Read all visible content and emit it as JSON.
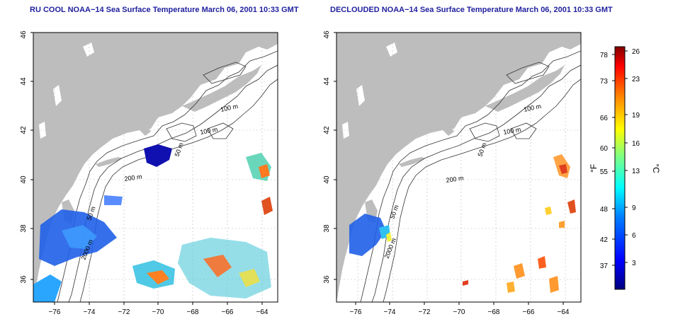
{
  "left_map": {
    "title": "RU COOL NOAA−14 Sea Surface Temperature March 06, 2001 10:33 GMT",
    "lat_ticks": [
      "36",
      "38",
      "40",
      "42",
      "44",
      "46"
    ],
    "lon_ticks": [
      "−76",
      "−74",
      "−72",
      "−70",
      "−68",
      "−66",
      "−64"
    ],
    "contour_labels": [
      "100 m",
      "100 m",
      "50 m",
      "200 m",
      "2000 m",
      "50 m"
    ]
  },
  "right_map": {
    "title": "DECLOUDED NOAA−14 Sea Surface Temperature March 06, 2001 10:33 GMT",
    "lat_ticks": [
      "36",
      "38",
      "40",
      "42",
      "44",
      "46"
    ],
    "lon_ticks": [
      "−76",
      "−74",
      "−72",
      "−70",
      "−68",
      "−66",
      "−64"
    ],
    "contour_labels": [
      "100 m",
      "100 m",
      "50 m",
      "200 m",
      "2000 m",
      "50 m"
    ]
  },
  "colorbar": {
    "left_unit": "°F",
    "right_unit": "°C",
    "fahrenheit_ticks": [
      "78",
      "73",
      "66",
      "60",
      "55",
      "48",
      "42",
      "37"
    ],
    "celsius_ticks": [
      "26",
      "23",
      "19",
      "16",
      "13",
      "9",
      "6",
      "3"
    ],
    "colors": [
      "#00007f",
      "#0000ff",
      "#0080ff",
      "#00ffff",
      "#80ff80",
      "#ffff00",
      "#ff8000",
      "#ff0000",
      "#800000"
    ]
  }
}
